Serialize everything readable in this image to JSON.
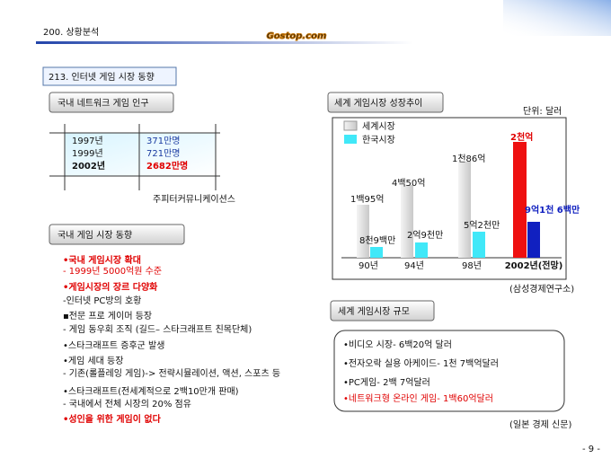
{
  "header": {
    "section": "200. 상황분석",
    "logo": "Gostop.com",
    "subsection": "213. 인터넷 게임 시장 동향"
  },
  "domestic_population": {
    "title": "국내 네트워크 게임 인구",
    "years": [
      "1997년",
      "1999년",
      "2002년"
    ],
    "users": [
      "371만명",
      "721만명",
      "2682만명"
    ],
    "source": "주피터커뮤니케이션스"
  },
  "domestic_trends": {
    "title": "국내 게임 시장 동향",
    "items": [
      "•국내 게임시장 확대",
      " - 1999년 5000억원 수준",
      "•게임시장의 장르 다양화",
      "-인터넷 PC방의 호황",
      "▪전문 프로 게이머 등장",
      " - 게임 동우회 조직 (길드– 스타크래프트 친목단체)",
      "•스타크래프트 증후군 발생",
      "•게임 세대 등장",
      " - 기존(롤플레잉 게임)-> 전략시뮬레이션, 액션, 스포츠 등",
      "•스타크래프트(전세계적으로 2백10만개 판매)",
      " - 국내에서 전체 시장의 20% 점유",
      "•성인을 위한 게임이 없다"
    ]
  },
  "world_growth": {
    "title": "세계 게임시장 성장추이",
    "unit": "단위: 달러",
    "legend": [
      "세계시장",
      "한국시장"
    ],
    "periods": [
      "90년",
      "94년",
      "98년",
      "2002년(전망)"
    ],
    "world_labels": [
      "1백95억",
      "4백50억",
      "1천86억",
      "2천억"
    ],
    "korea_labels": [
      "8천9백만",
      "2억9천만",
      "5억2천만",
      "9억1천 6백만"
    ],
    "source": "(삼성경제연구소)"
  },
  "world_size": {
    "title": "세계 게임시장 규모",
    "items": [
      "•비디오 시장- 6백20억 달러",
      "•전자오락 실용 아케이드- 1천 7백억달러",
      "•PC게임- 2백 7억달러",
      "•네트워크형 온라인 게임- 1백60억달러"
    ],
    "source": "(일본 경제 신문)"
  },
  "page_number": "- 9 -"
}
